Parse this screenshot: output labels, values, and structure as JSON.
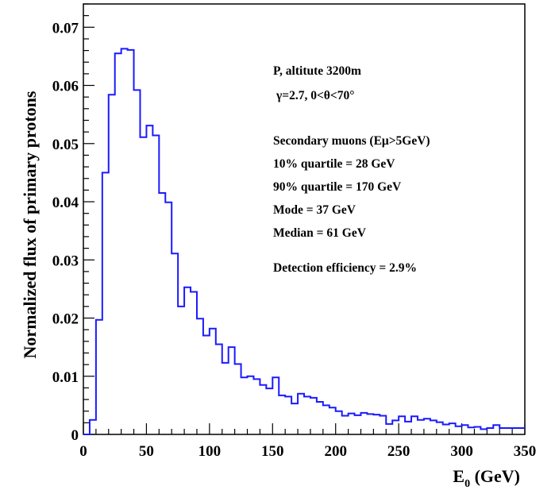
{
  "chart_data": {
    "type": "histogram",
    "xlabel": "E₀ (GeV)",
    "ylabel": "Normalized flux of primary protons",
    "xlim": [
      0,
      350
    ],
    "ylim": [
      0,
      0.074
    ],
    "grid": false,
    "x_ticks": [
      0,
      50,
      100,
      150,
      200,
      250,
      300,
      350
    ],
    "x_tick_labels": [
      "0",
      "50",
      "100",
      "150",
      "200",
      "250",
      "300",
      "350"
    ],
    "y_ticks": [
      0,
      0.01,
      0.02,
      0.03,
      0.04,
      0.05,
      0.06,
      0.07
    ],
    "y_tick_labels": [
      "0",
      "0.01",
      "0.02",
      "0.03",
      "0.04",
      "0.05",
      "0.06",
      "0.07"
    ],
    "series_color": "#1a1aff",
    "bin_width": 5,
    "bin_start": 0,
    "values": [
      0,
      0.0025,
      0.0197,
      0.045,
      0.0584,
      0.0655,
      0.0663,
      0.0661,
      0.0592,
      0.0511,
      0.0531,
      0.0514,
      0.0415,
      0.0399,
      0.0311,
      0.022,
      0.0253,
      0.0245,
      0.0199,
      0.017,
      0.0182,
      0.0155,
      0.0123,
      0.015,
      0.0121,
      0.0098,
      0.01,
      0.0095,
      0.0085,
      0.0079,
      0.0098,
      0.0067,
      0.0065,
      0.0053,
      0.007,
      0.0065,
      0.0063,
      0.0056,
      0.005,
      0.0046,
      0.004,
      0.0032,
      0.0036,
      0.0033,
      0.0037,
      0.0035,
      0.0034,
      0.0032,
      0.0018,
      0.0024,
      0.0031,
      0.0022,
      0.0031,
      0.0025,
      0.0027,
      0.0024,
      0.0021,
      0.0017,
      0.0019,
      0.0014,
      0.0016,
      0.0012,
      0.0013,
      0.0009,
      0.0011,
      0.0016,
      0.0011,
      0.0011,
      0.0011,
      0.0011
    ],
    "annotations": {
      "particle": "P, altitute 3200m",
      "spectrum": "γ=2.7, 0<θ<70°",
      "muons": "Secondary muons (Eμ>5GeV)",
      "q10": "10% quartile = 28 GeV",
      "q90": "90% quartile = 170 GeV",
      "mode": "Mode = 37 GeV",
      "median": "Median = 61 GeV",
      "efficiency": "Detection efficiency = 2.9%"
    }
  }
}
